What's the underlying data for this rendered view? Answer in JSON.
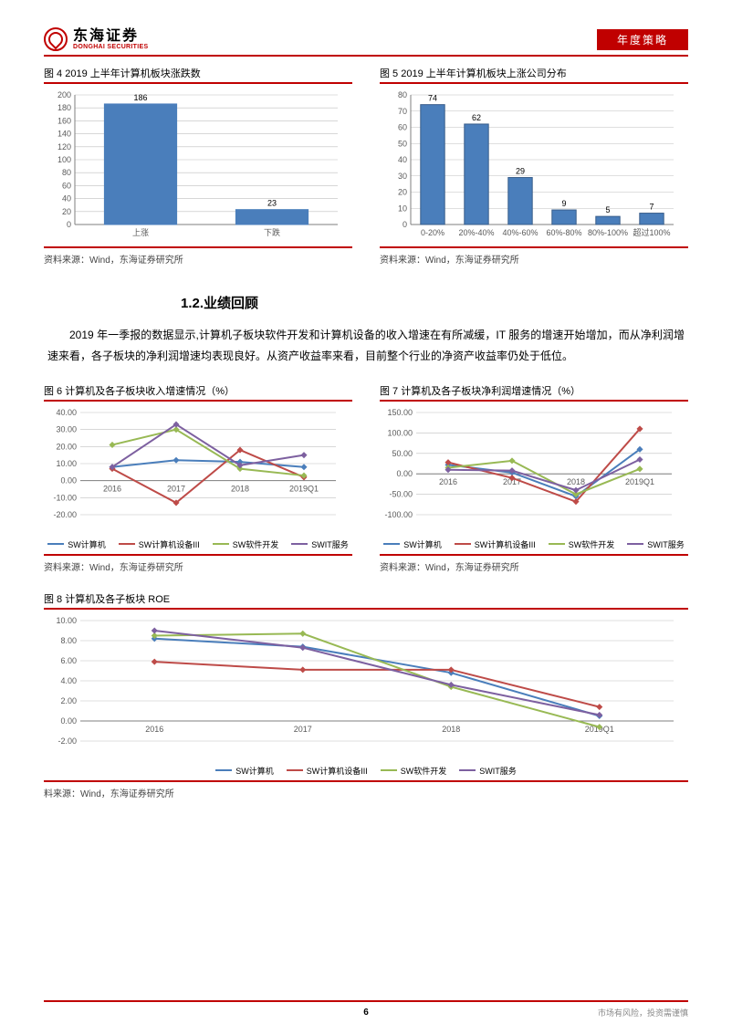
{
  "header": {
    "logo_cn": "东海证券",
    "logo_en": "DONGHAI SECURITIES",
    "badge": "年度策略"
  },
  "fig4": {
    "title": "图 4   2019 上半年计算机板块涨跌数",
    "type": "bar",
    "categories": [
      "上涨",
      "下跌"
    ],
    "values": [
      186,
      23
    ],
    "ylim": [
      0,
      200
    ],
    "ytick_step": 20,
    "bar_color": "#4a7ebb",
    "grid_color": "#bfbfbf",
    "source": "资料来源：Wind，东海证券研究所"
  },
  "fig5": {
    "title": "图 5   2019 上半年计算机板块上涨公司分布",
    "type": "bar",
    "categories": [
      "0-20%",
      "20%-40%",
      "40%-60%",
      "60%-80%",
      "80%-100%",
      "超过100%"
    ],
    "values": [
      74,
      62,
      29,
      9,
      5,
      7
    ],
    "ylim": [
      0,
      80
    ],
    "ytick_step": 10,
    "bar_color": "#4a7ebb",
    "border_color": "#385d8a",
    "source": "资料来源：Wind，东海证券研究所"
  },
  "section": {
    "heading": "1.2.业绩回顾",
    "body": "2019 年一季报的数据显示,计算机子板块软件开发和计算机设备的收入增速在有所减缓，IT 服务的增速开始增加，而从净利润增速来看，各子板块的净利润增速均表现良好。从资产收益率来看，目前整个行业的净资产收益率仍处于低位。"
  },
  "fig6": {
    "title": "图 6   计算机及各子板块收入增速情况（%）",
    "type": "line",
    "x": [
      "2016",
      "2017",
      "2018",
      "2019Q1"
    ],
    "ylim": [
      -20,
      40
    ],
    "ytick_step": 10,
    "series": [
      {
        "name": "SW计算机",
        "color": "#4a7ebb",
        "y": [
          8,
          12,
          11,
          8
        ]
      },
      {
        "name": "SW计算机设备III",
        "color": "#be4b48",
        "y": [
          7,
          -13,
          18,
          2
        ]
      },
      {
        "name": "SW软件开发",
        "color": "#98b954",
        "y": [
          21,
          30,
          7,
          3
        ]
      },
      {
        "name": "SWIT服务",
        "color": "#7d60a0",
        "y": [
          8,
          33,
          9,
          15
        ]
      }
    ],
    "source": "资料来源：Wind，东海证券研究所"
  },
  "fig7": {
    "title": "图 7   计算机及各子板块净利润增速情况（%）",
    "type": "line",
    "x": [
      "2016",
      "2017",
      "2018",
      "2019Q1"
    ],
    "ylim": [
      -100,
      150
    ],
    "ytick_step": 50,
    "series": [
      {
        "name": "SW计算机",
        "color": "#4a7ebb",
        "y": [
          22,
          3,
          -55,
          60
        ]
      },
      {
        "name": "SW计算机设备III",
        "color": "#be4b48",
        "y": [
          28,
          -10,
          -68,
          110
        ]
      },
      {
        "name": "SW软件开发",
        "color": "#98b954",
        "y": [
          15,
          32,
          -50,
          12
        ]
      },
      {
        "name": "SWIT服务",
        "color": "#7d60a0",
        "y": [
          10,
          8,
          -40,
          35
        ]
      }
    ],
    "source": "资料来源：Wind，东海证券研究所"
  },
  "fig8": {
    "title": "图 8   计算机及各子板块 ROE",
    "type": "line",
    "x": [
      "2016",
      "2017",
      "2018",
      "2019Q1"
    ],
    "ylim": [
      -2,
      10
    ],
    "ytick_step": 2,
    "series": [
      {
        "name": "SW计算机",
        "color": "#4a7ebb",
        "y": [
          8.2,
          7.4,
          4.8,
          0.5
        ]
      },
      {
        "name": "SW计算机设备III",
        "color": "#be4b48",
        "y": [
          5.9,
          5.1,
          5.1,
          1.4
        ]
      },
      {
        "name": "SW软件开发",
        "color": "#98b954",
        "y": [
          8.5,
          8.7,
          3.4,
          -0.6
        ]
      },
      {
        "name": "SWIT服务",
        "color": "#7d60a0",
        "y": [
          9.0,
          7.3,
          3.6,
          0.6
        ]
      }
    ],
    "source": "料来源：Wind，东海证券研究所"
  },
  "footer": {
    "page": "6",
    "disclaimer": "市场有风险，投资需谨慎"
  },
  "colors": {
    "red": "#c00000"
  }
}
